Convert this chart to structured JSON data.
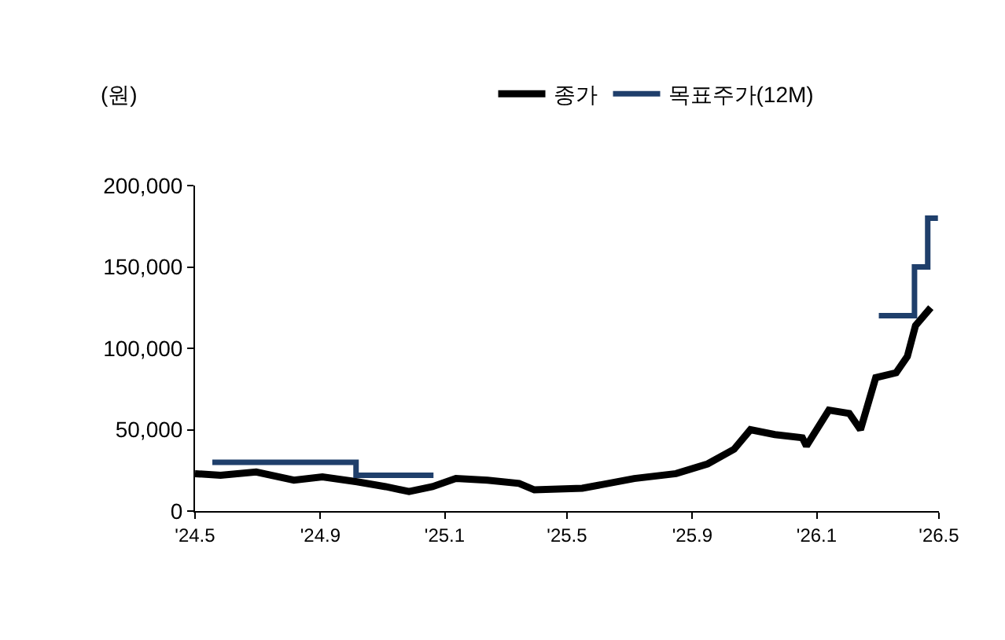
{
  "chart_data": {
    "type": "line",
    "ylabel": "(원)",
    "xlim": [
      "2024-05-01",
      "2026-05-01"
    ],
    "xticks": [
      {
        "value": "2024-05-01",
        "label": "'24.5"
      },
      {
        "value": "2024-09-01",
        "label": "'24.9"
      },
      {
        "value": "2025-01-01",
        "label": "'25.1"
      },
      {
        "value": "2025-05-01",
        "label": "'25.5"
      },
      {
        "value": "2025-09-01",
        "label": "'25.9"
      },
      {
        "value": "2026-01-01",
        "label": "'26.1"
      },
      {
        "value": "2026-05-01",
        "label": "'26.5"
      }
    ],
    "ylim": [
      0,
      200000
    ],
    "yticks": [
      {
        "value": 0,
        "label": "0"
      },
      {
        "value": 50000,
        "label": "50,000"
      },
      {
        "value": 100000,
        "label": "100,000"
      },
      {
        "value": 150000,
        "label": "150,000"
      },
      {
        "value": 200000,
        "label": "200,000"
      }
    ],
    "legend": "top",
    "marker": "none",
    "line_style": "solid",
    "series": [
      {
        "name": "종가",
        "color": "#000000",
        "x": [
          "2024-05-01",
          "2024-05-26",
          "2024-06-30",
          "2024-08-06",
          "2024-09-03",
          "2024-10-07",
          "2024-11-04",
          "2024-11-27",
          "2024-12-20",
          "2025-01-12",
          "2025-02-12",
          "2025-03-15",
          "2025-03-30",
          "2025-05-16",
          "2025-07-06",
          "2025-08-16",
          "2025-09-16",
          "2025-10-12",
          "2025-10-28",
          "2025-11-21",
          "2025-12-18",
          "2025-12-22",
          "2026-01-13",
          "2026-02-02",
          "2026-02-13",
          "2026-02-28",
          "2026-03-20",
          "2026-03-31",
          "2026-04-08",
          "2026-04-23"
        ],
        "values": [
          23000,
          22000,
          24000,
          19000,
          21000,
          18000,
          15000,
          12000,
          15000,
          20000,
          19000,
          17000,
          13000,
          14000,
          20000,
          23000,
          29000,
          38000,
          50000,
          47000,
          45000,
          40000,
          62000,
          60000,
          50000,
          82000,
          85000,
          95000,
          114000,
          125000
        ]
      },
      {
        "name": "목표주가(12M)",
        "type": "step",
        "color": "#1f3f6b",
        "x": [
          "2024-05-18",
          "2024-10-06",
          "2024-12-21",
          "2024-12-22",
          "2026-03-03",
          "2026-04-07",
          "2026-04-20",
          "2026-04-30"
        ],
        "values": [
          30000,
          22000,
          22000,
          null,
          120000,
          150000,
          180000,
          180000
        ]
      }
    ]
  }
}
